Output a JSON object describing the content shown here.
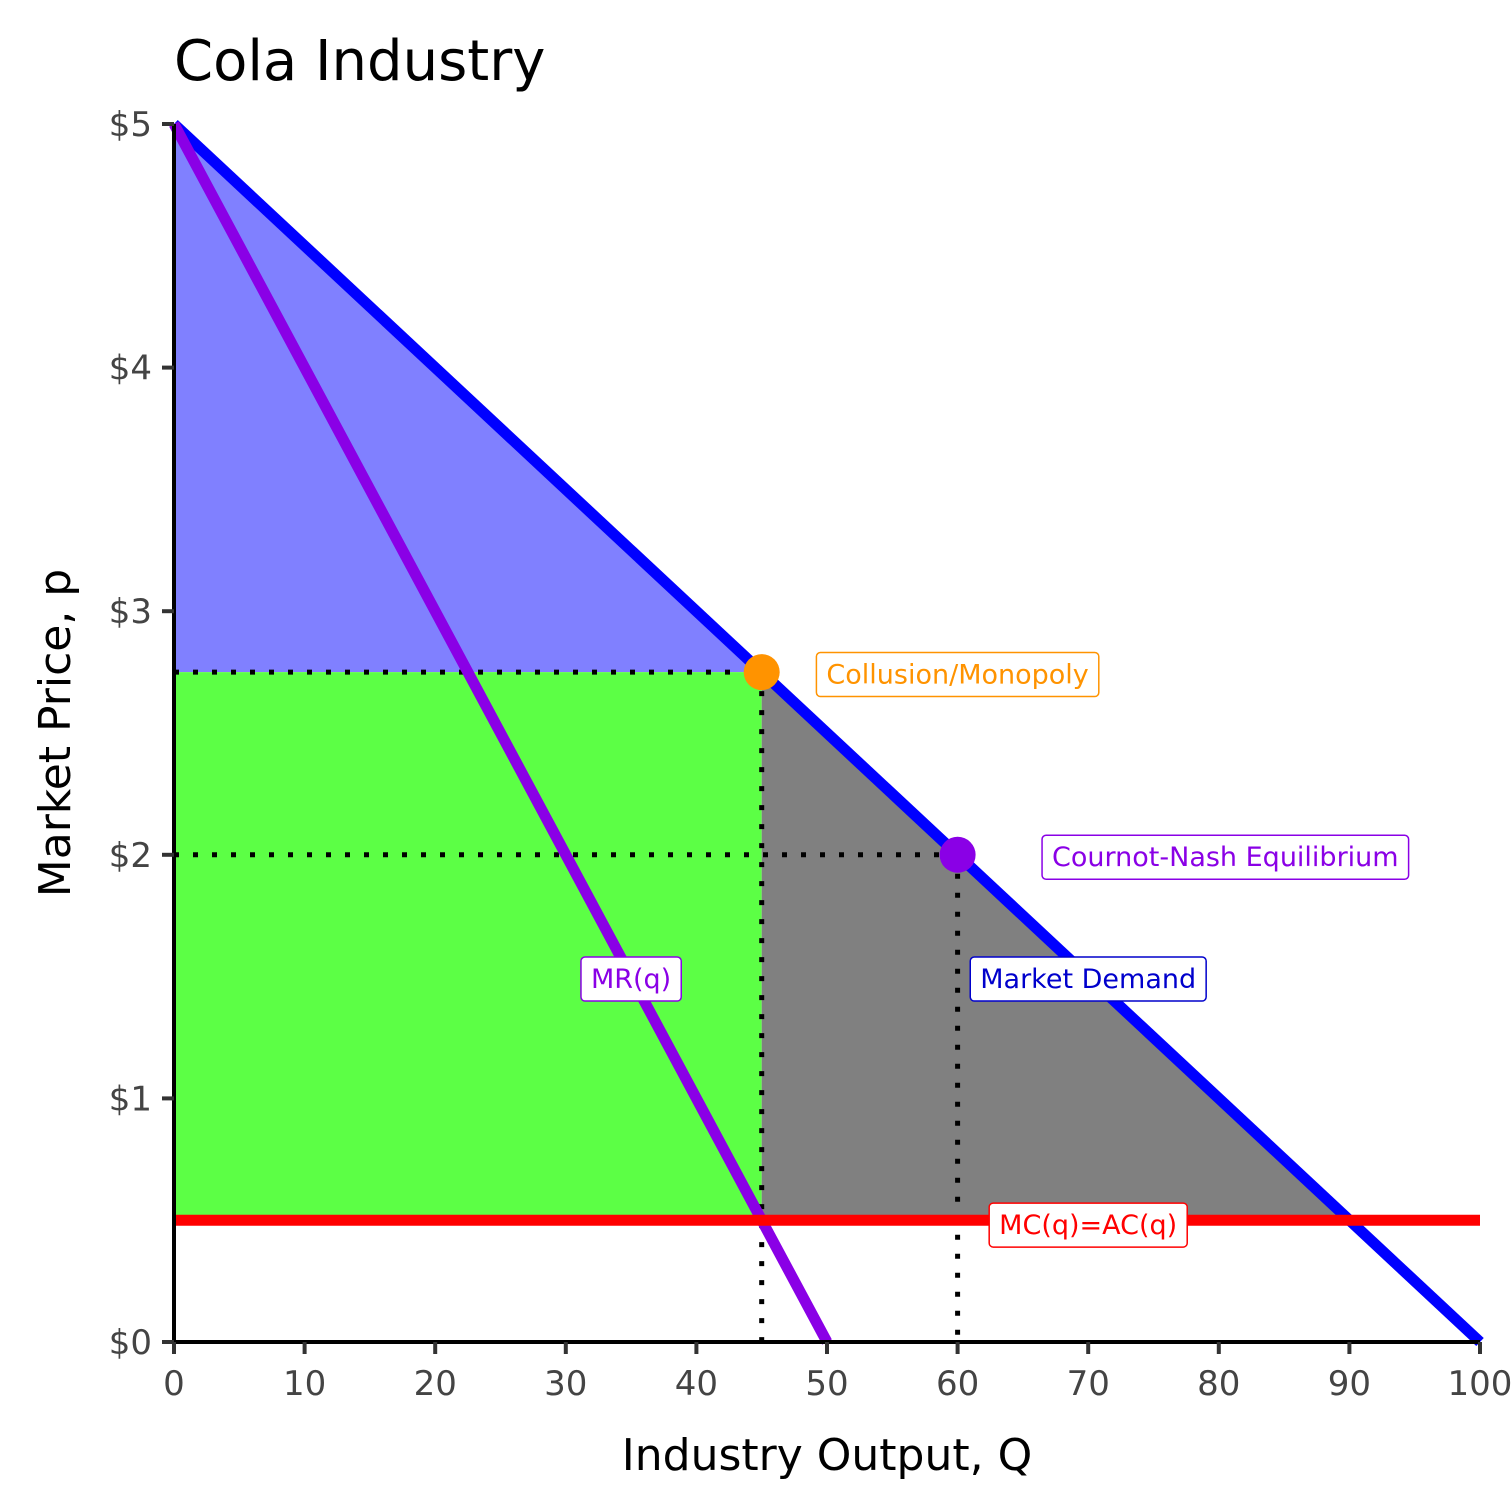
{
  "chart_data": {
    "type": "line",
    "title": "Cola Industry",
    "xlabel": "Industry Output, Q",
    "ylabel": "Market Price, p",
    "xlim": [
      0,
      100
    ],
    "ylim": [
      0,
      5
    ],
    "x_ticks": [
      0,
      10,
      20,
      30,
      40,
      50,
      60,
      70,
      80,
      90,
      100
    ],
    "x_tick_labels": [
      "0",
      "10",
      "20",
      "30",
      "40",
      "50",
      "60",
      "70",
      "80",
      "90",
      "100"
    ],
    "y_ticks": [
      0,
      1,
      2,
      3,
      4,
      5
    ],
    "y_tick_labels": [
      "$0",
      "$1",
      "$2",
      "$3",
      "$4",
      "$5"
    ],
    "grid": false,
    "series": [
      {
        "name": "Market Demand",
        "color": "#0000ff",
        "x": [
          0,
          100
        ],
        "y": [
          5,
          0
        ]
      },
      {
        "name": "MR(q)",
        "color": "#8a00e6",
        "x": [
          0,
          50
        ],
        "y": [
          5,
          0
        ]
      },
      {
        "name": "MC(q)=AC(q)",
        "color": "#ff0000",
        "x": [
          0,
          100
        ],
        "y": [
          0.5,
          0.5
        ]
      }
    ],
    "areas": [
      {
        "color": "#8080ff",
        "points": [
          [
            0,
            5
          ],
          [
            45,
            2.75
          ],
          [
            0,
            2.75
          ]
        ]
      },
      {
        "color": "#5cff45",
        "points": [
          [
            0,
            2.75
          ],
          [
            45,
            2.75
          ],
          [
            45,
            0.5
          ],
          [
            0,
            0.5
          ]
        ]
      },
      {
        "color": "#808080",
        "points": [
          [
            45,
            2.75
          ],
          [
            90,
            0.5
          ],
          [
            45,
            0.5
          ]
        ]
      }
    ],
    "points": [
      {
        "label": "Collusion/Monopoly",
        "x": 45,
        "y": 2.75,
        "color": "#ff9300"
      },
      {
        "label": "Cournot-Nash Equilibrium",
        "x": 60,
        "y": 2,
        "color": "#8a00e6"
      }
    ],
    "guides": [
      {
        "x": [
          0,
          45
        ],
        "y": [
          2.75,
          2.75
        ]
      },
      {
        "x": [
          0,
          60
        ],
        "y": [
          2,
          2
        ]
      },
      {
        "x": [
          45,
          45
        ],
        "y": [
          2.75,
          0
        ]
      },
      {
        "x": [
          60,
          60
        ],
        "y": [
          2,
          0
        ]
      }
    ],
    "annotations": [
      {
        "text": "Collusion/Monopoly",
        "x": 60,
        "y": 2.74,
        "color": "#ff9300"
      },
      {
        "text": "Cournot-Nash Equilibrium",
        "x": 80.5,
        "y": 1.99,
        "color": "#8a00e6"
      },
      {
        "text": "MR(q)",
        "x": 35,
        "y": 1.49,
        "color": "#8a00e6"
      },
      {
        "text": "Market Demand",
        "x": 70,
        "y": 1.49,
        "color": "#0000cc"
      },
      {
        "text": "MC(q)=AC(q)",
        "x": 70,
        "y": 0.48,
        "color": "#ff0000"
      }
    ]
  }
}
